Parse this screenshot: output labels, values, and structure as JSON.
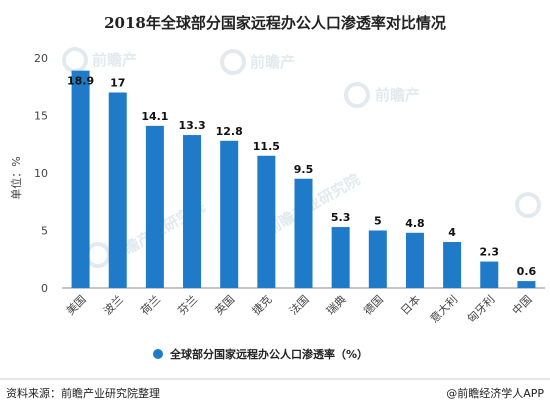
{
  "chart_data": {
    "type": "bar",
    "title": "2018年全球部分国家远程办公人口渗透率对比情况",
    "ylabel": "单位：%",
    "ylim": [
      0,
      20
    ],
    "yticks": [
      0,
      5,
      10,
      15,
      20
    ],
    "grid": false,
    "legend_position": "bottom-center",
    "categories": [
      "美国",
      "波兰",
      "荷兰",
      "芬兰",
      "英国",
      "捷克",
      "法国",
      "瑞典",
      "德国",
      "日本",
      "意大利",
      "匈牙利",
      "中国"
    ],
    "series": [
      {
        "name": "全球部分国家远程办公人口渗透率（%）",
        "values": [
          18.9,
          17,
          14.1,
          13.3,
          12.8,
          11.5,
          9.5,
          5.3,
          5,
          4.8,
          4,
          2.3,
          0.6
        ],
        "labels": [
          "18.9",
          "17",
          "14.1",
          "13.3",
          "12.8",
          "11.5",
          "9.5",
          "5.3",
          "5",
          "4.8",
          "4",
          "2.3",
          "0.6"
        ],
        "color": "#1f7ac8"
      }
    ]
  },
  "footer": {
    "source": "资料来源：前瞻产业研究院整理",
    "brand": "@前瞻经济学人APP"
  },
  "watermark": {
    "text1": "前瞻产业研究院",
    "text2": "前瞻产",
    "icon": "qianzhan-logo-icon"
  },
  "colors": {
    "bar": "#1f7ac8",
    "axis": "#888888",
    "watermark": "#dfe8ee"
  }
}
